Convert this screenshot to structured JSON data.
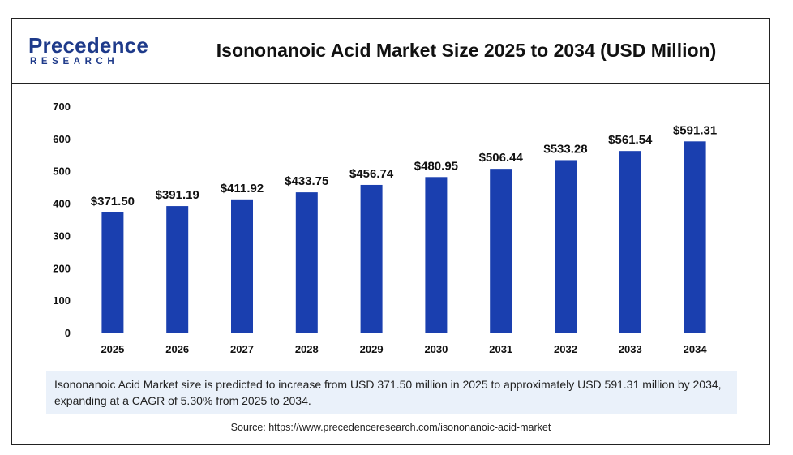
{
  "logo": {
    "top": "Precedence",
    "bottom": "RESEARCH"
  },
  "title": "Isononanoic Acid Market Size 2025 to 2034 (USD Million)",
  "note": "Isononanoic Acid Market size is predicted to increase from USD 371.50 million in 2025 to approximately USD 591.31 million by 2034, expanding at a CAGR of 5.30% from 2025 to 2034.",
  "source": "Source: https://www.precedenceresearch.com/isononanoic-acid-market",
  "colors": {
    "bar": "#1a3faf",
    "frame": "#222222",
    "note_bg": "#eaf1fa",
    "brand": "#1e3a8a"
  },
  "chart_data": {
    "type": "bar",
    "title": "Isononanoic Acid Market Size 2025 to 2034 (USD Million)",
    "xlabel": "",
    "ylabel": "",
    "categories": [
      "2025",
      "2026",
      "2027",
      "2028",
      "2029",
      "2030",
      "2031",
      "2032",
      "2033",
      "2034"
    ],
    "values": [
      371.5,
      391.19,
      411.92,
      433.75,
      456.74,
      480.95,
      506.44,
      533.28,
      561.54,
      591.31
    ],
    "labels": [
      "$371.50",
      "$391.19",
      "$411.92",
      "$433.75",
      "$456.74",
      "$480.95",
      "$506.44",
      "$533.28",
      "$561.54",
      "$591.31"
    ],
    "yticks": [
      0,
      100,
      200,
      300,
      400,
      500,
      600,
      700
    ],
    "ylim": [
      0,
      700
    ],
    "grid": false,
    "legend": "none"
  }
}
